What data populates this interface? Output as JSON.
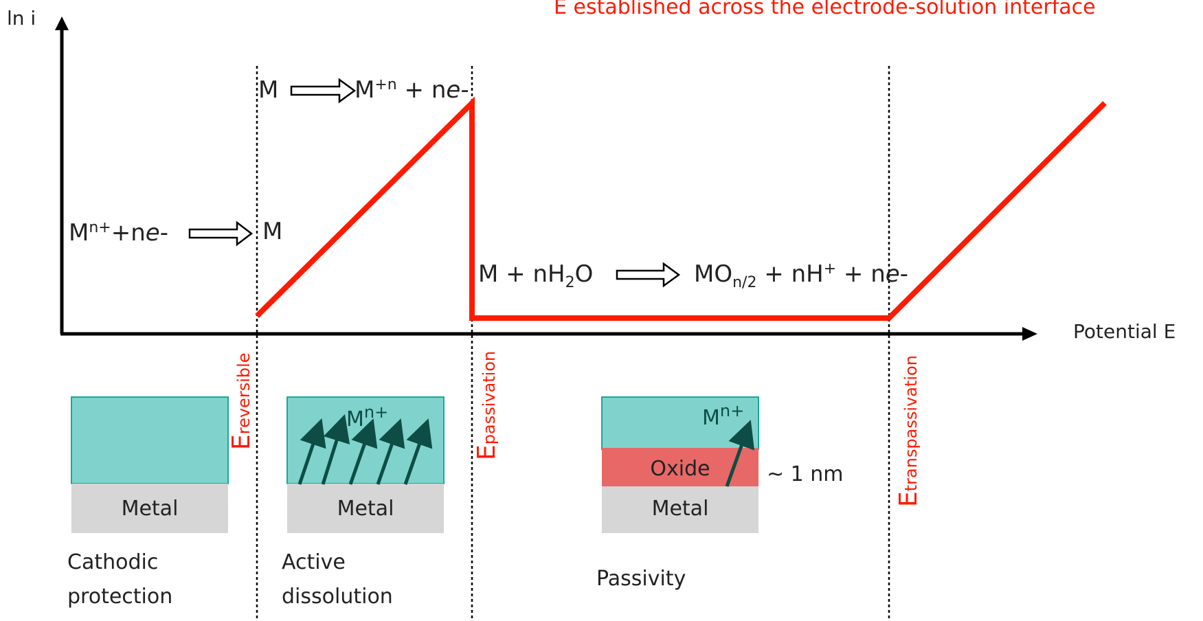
{
  "header": {
    "title": "E established across the electrode-solution interface"
  },
  "axes": {
    "y_label": "ln i",
    "x_label": "Potential E"
  },
  "potentials": {
    "reversible": {
      "main": "E",
      "sub": "reversible"
    },
    "passivation": {
      "main": "E",
      "sub": "passivation"
    },
    "transpassivation": {
      "main": "E",
      "sub": "transpassivation"
    }
  },
  "reactions": {
    "cathodic_left": "M",
    "cathodic_left_sup": "n+",
    "cathodic_left_rest": "+n",
    "cathodic_left_e": "e",
    "cathodic_left_minus": "-",
    "cathodic_right": "M",
    "anodic_left": "M",
    "anodic_right": "M",
    "anodic_right_sup": "+n",
    "anodic_right_rest": " + n",
    "anodic_right_e": "e",
    "anodic_right_minus": "-",
    "passive_left": "M + nH",
    "passive_left_sub": "2",
    "passive_left_rest": "O",
    "passive_right": "MO",
    "passive_right_sub": "n/2",
    "passive_right_mid": " + nH",
    "passive_right_sup": "+",
    "passive_right_mid2": " + n",
    "passive_right_e": "e",
    "passive_right_minus": "-"
  },
  "panels": {
    "cathodic": {
      "metal": "Metal",
      "caption_1": "Cathodic",
      "caption_2": "protection"
    },
    "active": {
      "metal": "Metal",
      "ion": "M",
      "ion_sup": "n+",
      "caption_1": "Active",
      "caption_2": "dissolution"
    },
    "passive": {
      "metal": "Metal",
      "oxide": "Oxide",
      "ion": "M",
      "ion_sup": "n+",
      "thickness": "~ 1 nm",
      "caption_1": "Passivity"
    }
  },
  "colors": {
    "curve": "#ff1a00",
    "solution": "#80d3cc",
    "solution_border": "#19a89a",
    "metal": "#d6d6d6",
    "oxide": "#e86868",
    "arrow": "#0d4d45"
  }
}
